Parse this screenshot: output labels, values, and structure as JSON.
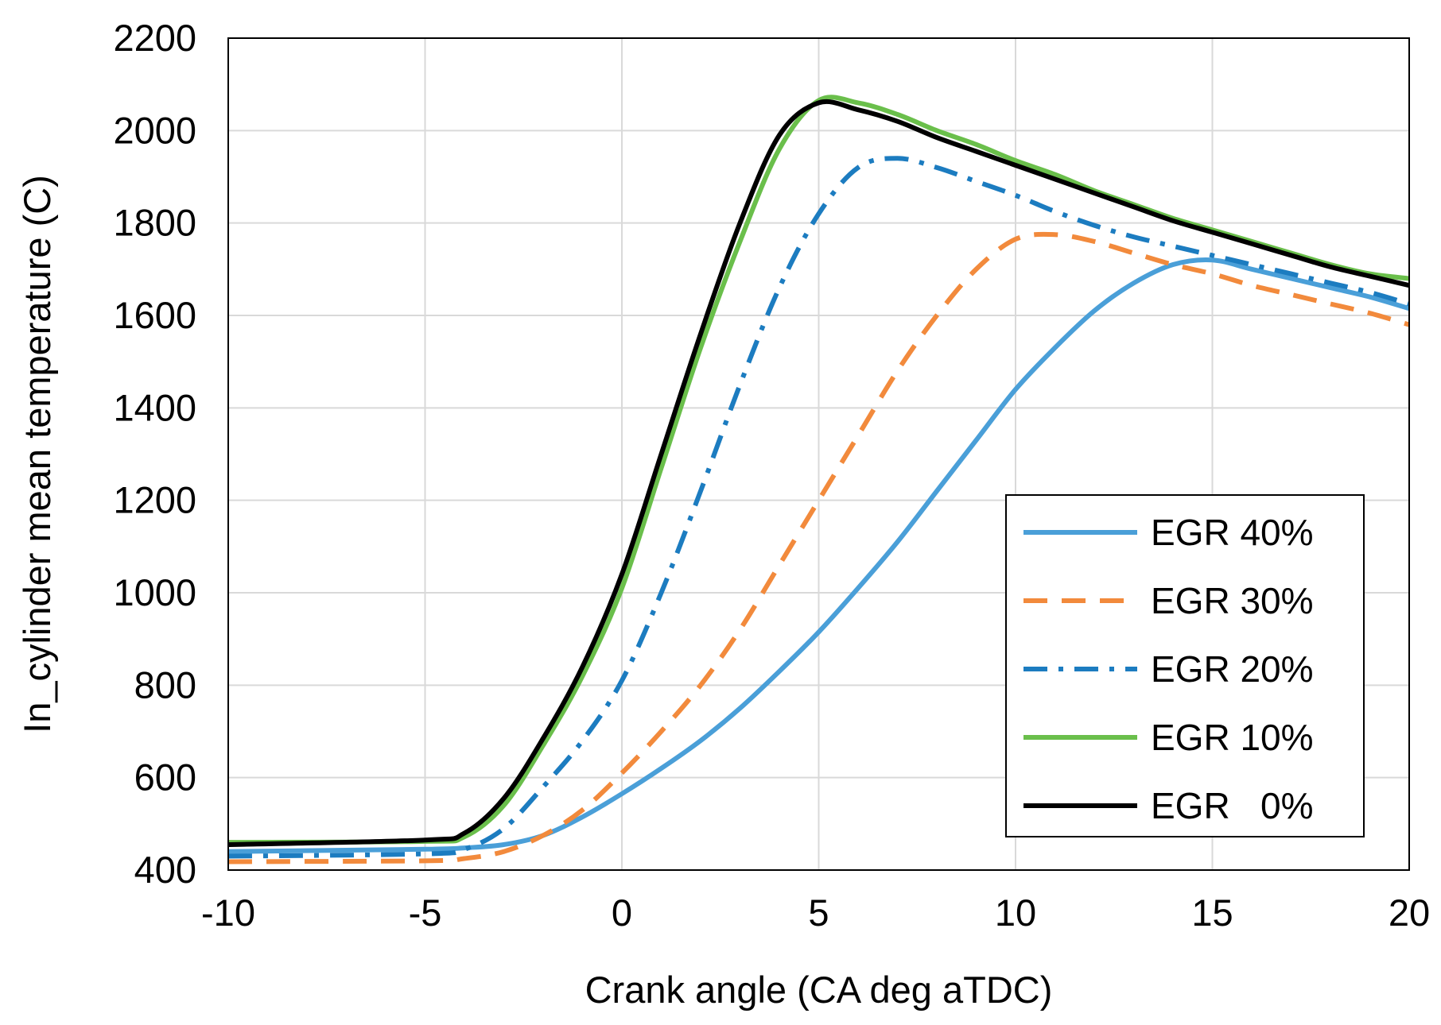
{
  "chart_data": {
    "type": "line",
    "title": "",
    "xlabel": "Crank angle   (CA deg aTDC)",
    "ylabel": "In_cylinder mean temperature   (C)",
    "xlim": [
      -10,
      20
    ],
    "ylim": [
      400,
      2200
    ],
    "xticks": [
      -10,
      -5,
      0,
      5,
      10,
      15,
      20
    ],
    "yticks": [
      400,
      600,
      800,
      1000,
      1200,
      1400,
      1600,
      1800,
      2000,
      2200
    ],
    "xtick_labels": [
      "-10",
      "-5",
      "0",
      "5",
      "10",
      "15",
      "20"
    ],
    "ytick_labels": [
      "400",
      "600",
      "800",
      "1000",
      "1200",
      "1400",
      "1600",
      "1800",
      "2000",
      "2200"
    ],
    "grid": true,
    "legend_position": "bottom-right",
    "series": [
      {
        "name": "EGR 40%",
        "color": "#4a9fd8",
        "dash": "solid",
        "x": [
          -10,
          -5,
          -4,
          -3,
          -2,
          -1,
          0,
          1,
          2,
          3,
          4,
          5,
          6,
          7,
          8,
          9,
          10,
          11,
          12,
          13,
          14,
          15,
          16,
          17,
          18,
          19,
          20
        ],
        "y": [
          440,
          445,
          448,
          455,
          475,
          515,
          565,
          620,
          680,
          750,
          830,
          915,
          1010,
          1110,
          1220,
          1330,
          1440,
          1530,
          1610,
          1670,
          1710,
          1720,
          1700,
          1680,
          1660,
          1640,
          1615
        ]
      },
      {
        "name": "EGR 30%",
        "color": "#f28a3c",
        "dash": "dashed",
        "x": [
          -10,
          -5,
          -4,
          -3,
          -2,
          -1,
          0,
          1,
          2,
          3,
          4,
          5,
          6,
          7,
          8,
          9,
          10,
          11,
          12,
          13,
          14,
          15,
          16,
          17,
          18,
          19,
          20
        ],
        "y": [
          418,
          420,
          425,
          440,
          475,
          530,
          610,
          700,
          800,
          920,
          1060,
          1200,
          1340,
          1480,
          1600,
          1700,
          1765,
          1775,
          1760,
          1735,
          1710,
          1690,
          1665,
          1645,
          1625,
          1605,
          1580
        ]
      },
      {
        "name": "EGR 20%",
        "color": "#1c7cc0",
        "dash": "dashdot",
        "x": [
          -10,
          -5,
          -4,
          -3,
          -2,
          -1,
          0,
          1,
          2,
          3,
          4,
          5,
          6,
          7,
          8,
          9,
          10,
          11,
          12,
          13,
          14,
          15,
          16,
          17,
          18,
          19,
          20
        ],
        "y": [
          430,
          435,
          445,
          490,
          580,
          680,
          810,
          1000,
          1220,
          1450,
          1660,
          1820,
          1920,
          1940,
          1920,
          1890,
          1860,
          1825,
          1795,
          1770,
          1750,
          1730,
          1710,
          1690,
          1670,
          1650,
          1625
        ]
      },
      {
        "name": "EGR 10%",
        "color": "#6abf4b",
        "dash": "solid",
        "x": [
          -10,
          -5,
          -4,
          -3,
          -2,
          -1,
          0,
          1,
          2,
          3,
          4,
          5,
          6,
          7,
          8,
          9,
          10,
          11,
          12,
          13,
          14,
          15,
          16,
          17,
          18,
          19,
          20
        ],
        "y": [
          460,
          462,
          472,
          540,
          670,
          820,
          1010,
          1270,
          1530,
          1760,
          1960,
          2065,
          2060,
          2035,
          2000,
          1970,
          1935,
          1905,
          1870,
          1840,
          1810,
          1785,
          1760,
          1735,
          1710,
          1690,
          1680
        ]
      },
      {
        "name": "EGR   0%",
        "color": "#000000",
        "dash": "solid",
        "x": [
          -10,
          -5,
          -4,
          -3,
          -2,
          -1,
          0,
          1,
          2,
          3,
          4,
          5,
          6,
          7,
          8,
          9,
          10,
          11,
          12,
          13,
          14,
          15,
          16,
          17,
          18,
          19,
          20
        ],
        "y": [
          455,
          465,
          480,
          555,
          685,
          840,
          1040,
          1300,
          1560,
          1800,
          1990,
          2060,
          2045,
          2020,
          1985,
          1955,
          1925,
          1895,
          1865,
          1835,
          1805,
          1780,
          1755,
          1730,
          1705,
          1685,
          1665
        ]
      }
    ]
  }
}
